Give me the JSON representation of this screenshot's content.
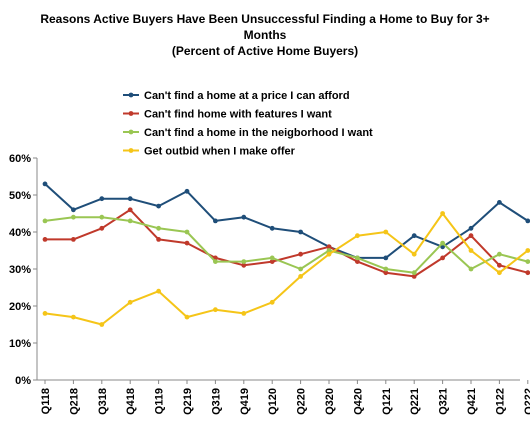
{
  "chart_data": {
    "type": "line",
    "title_lines": [
      "Reasons Active Buyers Have Been Unsuccessful Finding a Home to Buy for 3+",
      "Months",
      "(Percent of Active Home Buyers)"
    ],
    "categories": [
      "Q118",
      "Q218",
      "Q318",
      "Q418",
      "Q119",
      "Q219",
      "Q319",
      "Q419",
      "Q120",
      "Q220",
      "Q320",
      "Q420",
      "Q121",
      "Q221",
      "Q321",
      "Q421",
      "Q122",
      "Q222"
    ],
    "y_tick_labels": [
      "0%",
      "10%",
      "20%",
      "30%",
      "40%",
      "50%",
      "60%"
    ],
    "ylim": [
      0,
      60
    ],
    "grid": false,
    "legend_position": "top",
    "series": [
      {
        "name": "Can't find a home at a price I can afford",
        "color": "#1f4e79",
        "values": [
          53,
          46,
          49,
          49,
          47,
          51,
          43,
          44,
          41,
          40,
          36,
          33,
          33,
          39,
          36,
          41,
          48,
          43
        ]
      },
      {
        "name": "Can't find home with features I want",
        "color": "#c0392b",
        "values": [
          38,
          38,
          41,
          46,
          38,
          37,
          33,
          31,
          32,
          34,
          36,
          32,
          29,
          28,
          33,
          39,
          31,
          29
        ]
      },
      {
        "name": "Can't find a home in the neigborhood I want",
        "color": "#9ac653",
        "values": [
          43,
          44,
          44,
          43,
          41,
          40,
          32,
          32,
          33,
          30,
          35,
          33,
          30,
          29,
          37,
          30,
          34,
          32
        ]
      },
      {
        "name": "Get outbid when I make offer",
        "color": "#f5c518",
        "values": [
          18,
          17,
          15,
          21,
          24,
          17,
          19,
          18,
          21,
          28,
          34,
          39,
          40,
          34,
          45,
          35,
          29,
          35
        ]
      }
    ]
  }
}
